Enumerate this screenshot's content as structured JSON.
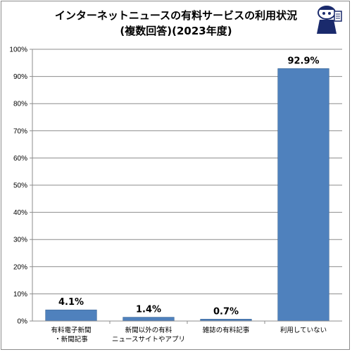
{
  "chart_data": {
    "type": "bar",
    "title": "インターネットニュースの有料サービスの利用状況",
    "subtitle": "(複数回答)(2023年度)",
    "categories": [
      [
        "有料電子新聞",
        "・新聞記事"
      ],
      [
        "新聞以外の有料",
        "ニュースサイトやアプリ"
      ],
      [
        "雑誌の有料記事"
      ],
      [
        "利用していない"
      ]
    ],
    "values": [
      4.1,
      1.4,
      0.7,
      92.9
    ],
    "data_labels": [
      "4.1%",
      "1.4%",
      "0.7%",
      "92.9%"
    ],
    "yticks": [
      "0%",
      "10%",
      "20%",
      "30%",
      "40%",
      "50%",
      "60%",
      "70%",
      "80%",
      "90%",
      "100%"
    ],
    "ylim": [
      0,
      100
    ],
    "grid": true,
    "bar_color": "#4f81bd",
    "bar_edge_color": "#3a6494"
  },
  "mascot": {
    "icon": "reporter-mascot-icon"
  }
}
